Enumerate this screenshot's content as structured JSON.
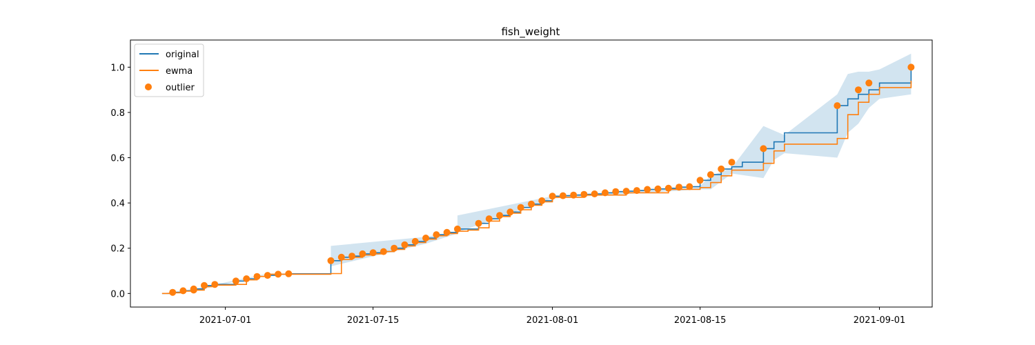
{
  "chart_data": {
    "type": "line",
    "title": "fish_weight",
    "xlabel": "",
    "ylabel": "",
    "x_axis_kind": "date",
    "xlim": [
      "2021-06-22",
      "2021-09-06"
    ],
    "ylim": [
      -0.06,
      1.12
    ],
    "x_ticks": [
      "2021-07-01",
      "2021-07-15",
      "2021-08-01",
      "2021-08-15",
      "2021-09-01"
    ],
    "y_ticks": [
      0.0,
      0.2,
      0.4,
      0.6,
      0.8,
      1.0
    ],
    "y_tick_labels": [
      "0.0",
      "0.2",
      "0.4",
      "0.6",
      "0.8",
      "1.0"
    ],
    "grid": false,
    "legend": {
      "placement": "upper-left",
      "entries": [
        "original",
        "ewma",
        "outlier"
      ]
    },
    "colors": {
      "original": "#1f77b4",
      "ewma": "#ff7f0e",
      "outlier": "#ff7f0e",
      "band": "#1f77b4"
    },
    "series": [
      {
        "name": "original",
        "type": "line",
        "x": [
          "2021-06-25",
          "2021-06-26",
          "2021-06-27",
          "2021-06-28",
          "2021-06-28",
          "2021-06-29",
          "2021-06-30",
          "2021-07-02",
          "2021-07-03",
          "2021-07-04",
          "2021-07-05",
          "2021-07-06",
          "2021-07-07",
          "2021-07-11",
          "2021-07-12",
          "2021-07-13",
          "2021-07-14",
          "2021-07-15",
          "2021-07-16",
          "2021-07-17",
          "2021-07-18",
          "2021-07-19",
          "2021-07-20",
          "2021-07-21",
          "2021-07-22",
          "2021-07-23",
          "2021-07-25",
          "2021-07-26",
          "2021-07-27",
          "2021-07-28",
          "2021-07-29",
          "2021-07-30",
          "2021-07-31",
          "2021-08-01",
          "2021-08-02",
          "2021-08-03",
          "2021-08-04",
          "2021-08-05",
          "2021-08-06",
          "2021-08-07",
          "2021-08-08",
          "2021-08-09",
          "2021-08-10",
          "2021-08-11",
          "2021-08-12",
          "2021-08-13",
          "2021-08-14",
          "2021-08-15",
          "2021-08-16",
          "2021-08-17",
          "2021-08-18",
          "2021-08-19",
          "2021-08-21",
          "2021-08-22",
          "2021-08-23",
          "2021-08-28",
          "2021-08-29",
          "2021-08-30",
          "2021-08-31",
          "2021-09-01",
          "2021-09-04"
        ],
        "y": [
          0.0,
          0.005,
          0.012,
          0.015,
          0.02,
          0.035,
          0.04,
          0.055,
          0.065,
          0.075,
          0.08,
          0.085,
          0.087,
          0.145,
          0.16,
          0.165,
          0.175,
          0.18,
          0.185,
          0.2,
          0.215,
          0.23,
          0.245,
          0.26,
          0.27,
          0.285,
          0.31,
          0.33,
          0.345,
          0.36,
          0.38,
          0.395,
          0.41,
          0.43,
          0.432,
          0.435,
          0.438,
          0.44,
          0.445,
          0.45,
          0.452,
          0.455,
          0.46,
          0.462,
          0.465,
          0.47,
          0.472,
          0.5,
          0.525,
          0.55,
          0.56,
          0.58,
          0.64,
          0.67,
          0.71,
          0.83,
          0.86,
          0.88,
          0.9,
          0.93,
          1.0
        ]
      },
      {
        "name": "ewma",
        "type": "line",
        "x": [
          "2021-06-25",
          "2021-06-26",
          "2021-06-27",
          "2021-06-28",
          "2021-06-29",
          "2021-06-30",
          "2021-07-02",
          "2021-07-03",
          "2021-07-04",
          "2021-07-05",
          "2021-07-11",
          "2021-07-12",
          "2021-07-13",
          "2021-07-14",
          "2021-07-15",
          "2021-07-16",
          "2021-07-17",
          "2021-07-18",
          "2021-07-19",
          "2021-07-20",
          "2021-07-21",
          "2021-07-22",
          "2021-07-23",
          "2021-07-24",
          "2021-07-25",
          "2021-07-26",
          "2021-07-27",
          "2021-07-28",
          "2021-07-29",
          "2021-07-30",
          "2021-07-31",
          "2021-08-01",
          "2021-08-04",
          "2021-08-08",
          "2021-08-12",
          "2021-08-15",
          "2021-08-16",
          "2021-08-17",
          "2021-08-18",
          "2021-08-21",
          "2021-08-22",
          "2021-08-23",
          "2021-08-28",
          "2021-08-29",
          "2021-08-30",
          "2021-08-31",
          "2021-09-01",
          "2021-09-04"
        ],
        "y": [
          0.0,
          0.003,
          0.01,
          0.015,
          0.03,
          0.037,
          0.04,
          0.06,
          0.075,
          0.085,
          0.088,
          0.15,
          0.16,
          0.17,
          0.175,
          0.185,
          0.195,
          0.21,
          0.225,
          0.24,
          0.255,
          0.265,
          0.275,
          0.28,
          0.29,
          0.32,
          0.34,
          0.355,
          0.37,
          0.39,
          0.405,
          0.425,
          0.435,
          0.445,
          0.46,
          0.468,
          0.49,
          0.52,
          0.545,
          0.575,
          0.63,
          0.66,
          0.685,
          0.79,
          0.845,
          0.88,
          0.91,
          0.94
        ]
      },
      {
        "name": "ewma-band",
        "type": "area",
        "x": [
          "2021-06-25",
          "2021-06-28",
          "2021-07-05",
          "2021-07-11",
          "2021-07-11",
          "2021-07-20",
          "2021-07-23",
          "2021-07-23",
          "2021-08-01",
          "2021-08-15",
          "2021-08-16",
          "2021-08-18",
          "2021-08-21",
          "2021-08-22",
          "2021-08-23",
          "2021-08-28",
          "2021-08-29",
          "2021-08-30",
          "2021-08-31",
          "2021-09-01",
          "2021-09-04"
        ],
        "upper": [
          0.0,
          0.02,
          0.088,
          0.088,
          0.21,
          0.25,
          0.275,
          0.345,
          0.43,
          0.475,
          0.52,
          0.555,
          0.74,
          0.72,
          0.7,
          0.88,
          0.97,
          0.98,
          0.98,
          0.99,
          1.06
        ],
        "lower": [
          0.0,
          0.01,
          0.085,
          0.088,
          0.12,
          0.22,
          0.265,
          0.27,
          0.42,
          0.46,
          0.46,
          0.53,
          0.51,
          0.59,
          0.62,
          0.6,
          0.71,
          0.75,
          0.82,
          0.86,
          0.88
        ]
      },
      {
        "name": "outlier",
        "type": "scatter",
        "x": [
          "2021-06-26",
          "2021-06-27",
          "2021-06-28",
          "2021-06-28",
          "2021-06-29",
          "2021-06-30",
          "2021-07-02",
          "2021-07-03",
          "2021-07-04",
          "2021-07-05",
          "2021-07-06",
          "2021-07-07",
          "2021-07-11",
          "2021-07-12",
          "2021-07-13",
          "2021-07-14",
          "2021-07-15",
          "2021-07-16",
          "2021-07-17",
          "2021-07-18",
          "2021-07-19",
          "2021-07-20",
          "2021-07-21",
          "2021-07-22",
          "2021-07-23",
          "2021-07-25",
          "2021-07-26",
          "2021-07-27",
          "2021-07-28",
          "2021-07-29",
          "2021-07-30",
          "2021-07-31",
          "2021-08-01",
          "2021-08-02",
          "2021-08-03",
          "2021-08-04",
          "2021-08-05",
          "2021-08-06",
          "2021-08-07",
          "2021-08-08",
          "2021-08-09",
          "2021-08-10",
          "2021-08-11",
          "2021-08-12",
          "2021-08-13",
          "2021-08-14",
          "2021-08-15",
          "2021-08-16",
          "2021-08-17",
          "2021-08-18",
          "2021-08-21",
          "2021-08-28",
          "2021-08-30",
          "2021-08-31",
          "2021-09-04"
        ],
        "y": [
          0.005,
          0.012,
          0.015,
          0.02,
          0.035,
          0.04,
          0.055,
          0.065,
          0.075,
          0.08,
          0.085,
          0.087,
          0.145,
          0.16,
          0.165,
          0.175,
          0.18,
          0.185,
          0.2,
          0.215,
          0.23,
          0.245,
          0.26,
          0.27,
          0.285,
          0.31,
          0.33,
          0.345,
          0.36,
          0.38,
          0.395,
          0.41,
          0.43,
          0.432,
          0.435,
          0.438,
          0.44,
          0.445,
          0.45,
          0.452,
          0.455,
          0.46,
          0.462,
          0.465,
          0.47,
          0.472,
          0.5,
          0.525,
          0.55,
          0.58,
          0.64,
          0.83,
          0.9,
          0.93,
          1.0
        ]
      }
    ]
  }
}
